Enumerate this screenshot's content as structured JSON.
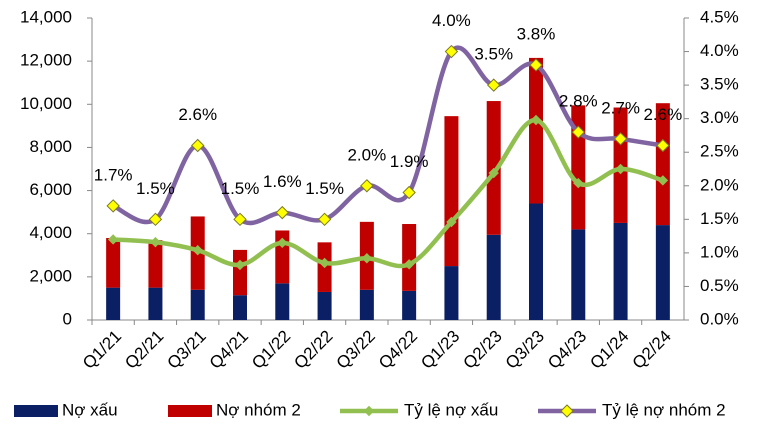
{
  "chart_data": {
    "type": "bar",
    "stacked": true,
    "categories": [
      "Q1/21",
      "Q2/21",
      "Q3/21",
      "Q4/21",
      "Q1/22",
      "Q2/22",
      "Q3/22",
      "Q4/22",
      "Q1/23",
      "Q2/23",
      "Q3/23",
      "Q4/23",
      "Q1/24",
      "Q2/24"
    ],
    "series": [
      {
        "name": "Nợ xấu",
        "color": "#0b1f65",
        "type": "bar",
        "values": [
          1500,
          1500,
          1400,
          1150,
          1700,
          1300,
          1400,
          1350,
          2500,
          3950,
          5400,
          4200,
          4500,
          4400
        ]
      },
      {
        "name": "Nợ nhóm 2",
        "color": "#c00000",
        "type": "bar",
        "values": [
          2300,
          2200,
          3400,
          2100,
          2450,
          2300,
          3150,
          3100,
          6950,
          6200,
          6750,
          5750,
          5350,
          5650
        ]
      },
      {
        "name": "Tỷ lệ nợ xấu",
        "color": "#92c050",
        "type": "line",
        "axis": "y2",
        "values": [
          1.2,
          1.16,
          1.04,
          0.82,
          1.15,
          0.85,
          0.92,
          0.83,
          1.46,
          2.19,
          2.98,
          2.04,
          2.25,
          2.08
        ]
      },
      {
        "name": "Tỷ lệ nợ nhóm 2",
        "color": "#8064a2",
        "type": "line",
        "axis": "y2",
        "values": [
          1.7,
          1.5,
          2.6,
          1.5,
          1.6,
          1.5,
          2.0,
          1.9,
          4.0,
          3.5,
          3.8,
          2.8,
          2.7,
          2.6
        ],
        "value_labels": [
          "1.7%",
          "1.5%",
          "2.6%",
          "1.5%",
          "1.6%",
          "1.5%",
          "2.0%",
          "1.9%",
          "4.0%",
          "3.5%",
          "3.8%",
          "2.8%",
          "2.7%",
          "2.6%"
        ]
      }
    ],
    "ylim": [
      0,
      14000
    ],
    "yticks": [
      0,
      {
        "value": 2000,
        "label": "2,000"
      },
      {
        "value": 4000,
        "label": "4,000"
      },
      {
        "value": 6000,
        "label": "6,000"
      },
      {
        "value": 8000,
        "label": "8,000"
      },
      {
        "value": 10000,
        "label": "10,000"
      },
      {
        "value": 12000,
        "label": "12,000"
      },
      {
        "value": 14000,
        "label": "14,000"
      }
    ],
    "y2lim": [
      0,
      4.5
    ],
    "y2ticks": [
      {
        "value": 0,
        "label": "0.0%"
      },
      {
        "value": 0.5,
        "label": "0.5%"
      },
      {
        "value": 1,
        "label": "1.0%"
      },
      {
        "value": 1.5,
        "label": "1.5%"
      },
      {
        "value": 2,
        "label": "2.0%"
      },
      {
        "value": 2.5,
        "label": "2.5%"
      },
      {
        "value": 3,
        "label": "3.0%"
      },
      {
        "value": 3.5,
        "label": "3.5%"
      },
      {
        "value": 4,
        "label": "4.0%"
      },
      {
        "value": 4.5,
        "label": "4.5%"
      }
    ],
    "grid": false,
    "legend": "bottom"
  }
}
